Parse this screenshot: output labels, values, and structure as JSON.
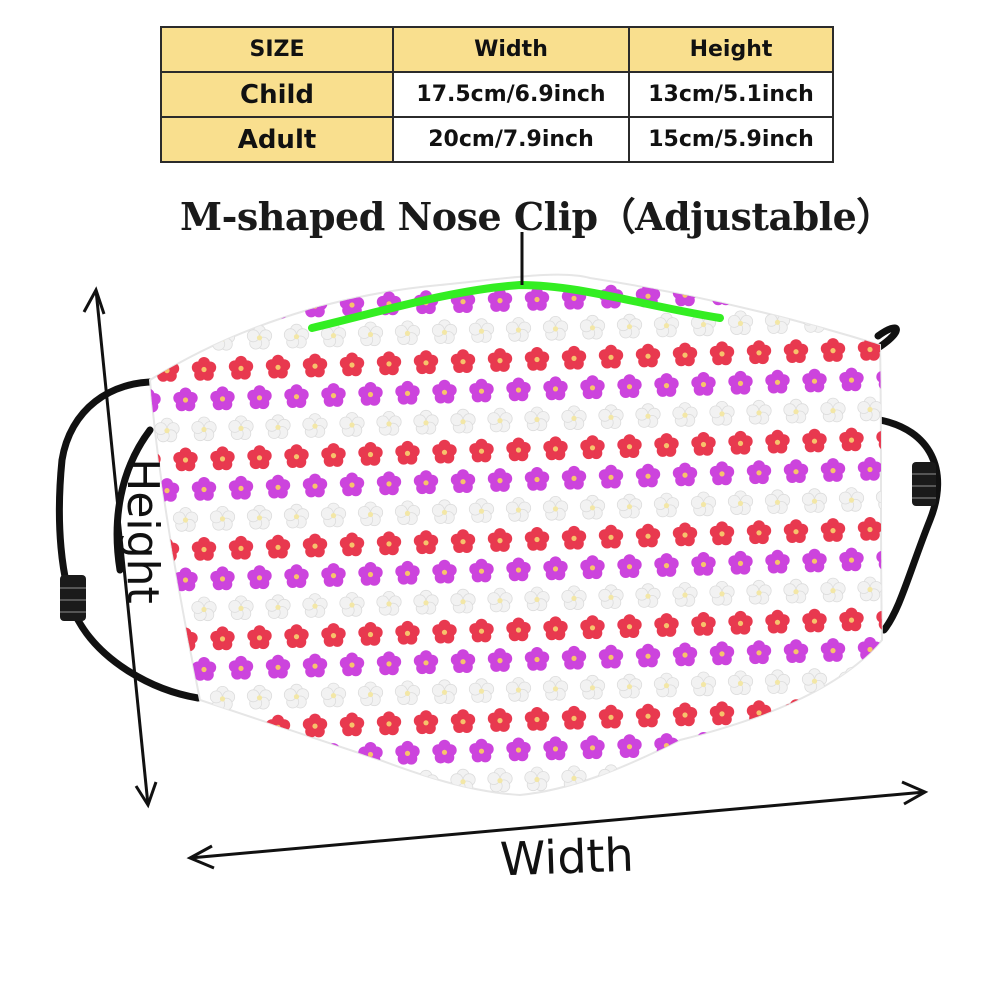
{
  "size_table": {
    "headers": [
      "SIZE",
      "Width",
      "Height"
    ],
    "rows": [
      {
        "size": "Child",
        "width": "17.5cm/6.9inch",
        "height": "13cm/5.1inch"
      },
      {
        "size": "Adult",
        "width": "20cm/7.9inch",
        "height": "15cm/5.9inch"
      }
    ]
  },
  "annotations": {
    "nose_clip": "M-shaped Nose Clip（Adjustable）",
    "height": "Height",
    "width": "Width"
  },
  "colors": {
    "table_header_bg": "#f9df8e",
    "nose_clip": "#33ee22",
    "flower_red": "#e8394f",
    "flower_magenta": "#cc44dd",
    "flower_white": "#f2f2f2",
    "ear_loop": "#111111"
  },
  "icons": {
    "flower": "flower-icon",
    "arrow": "double-arrow-icon"
  }
}
